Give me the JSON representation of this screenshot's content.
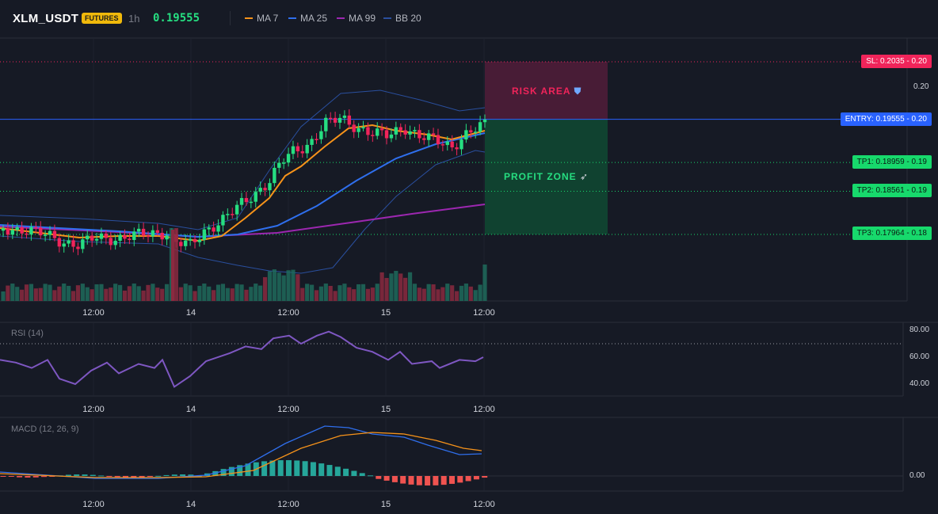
{
  "header": {
    "symbol": "XLM_USDT",
    "badge": "FUTURES",
    "timeframe": "1h",
    "last_price": "0.19555",
    "indicators": [
      {
        "label": "MA 7",
        "color": "#f7931a"
      },
      {
        "label": "MA 25",
        "color": "#2f6fed"
      },
      {
        "label": "MA 99",
        "color": "#9c27b0"
      },
      {
        "label": "BB 20",
        "color": "#2a4f9e"
      }
    ]
  },
  "colors": {
    "background": "#161a25",
    "up": "#26de81",
    "down": "#f0245a",
    "grid": "#1f2330"
  },
  "trade": {
    "sl_label": "SL: 0.2035",
    "sl_axis": "0.20",
    "entry_label": "ENTRY: 0.19555",
    "entry_axis": "0.20",
    "tp1_label": "TP1: 0.18959",
    "tp1_axis": "0.19",
    "tp2_label": "TP2: 0.18561",
    "tp2_axis": "0.19",
    "tp3_label": "TP3: 0.17964",
    "tp3_axis": "0.18",
    "risk_area_label": "RISK AREA",
    "risk_icon": "shield-icon",
    "profit_zone_label": "PROFIT ZONE",
    "profit_icon": "rocket-icon",
    "sl": 0.2035,
    "entry": 0.19555,
    "tp1": 0.18959,
    "tp2": 0.18561,
    "tp3": 0.17964
  },
  "price_axis": {
    "tick_label": "0.20"
  },
  "time_axis": [
    "12:00",
    "14",
    "12:00",
    "15",
    "12:00"
  ],
  "rsi": {
    "label": "RSI (14)",
    "ticks": [
      "80.00",
      "60.00",
      "40.00"
    ],
    "overbought": 70
  },
  "macd": {
    "label": "MACD (12, 26, 9)",
    "tick": "0.00"
  },
  "chart_data": {
    "type": "candlestick",
    "symbol": "XLM_USDT",
    "interval": "1h",
    "price_range": [
      0.1745,
      0.2045
    ],
    "candles": [],
    "rsi_series": [],
    "macd_series": []
  }
}
